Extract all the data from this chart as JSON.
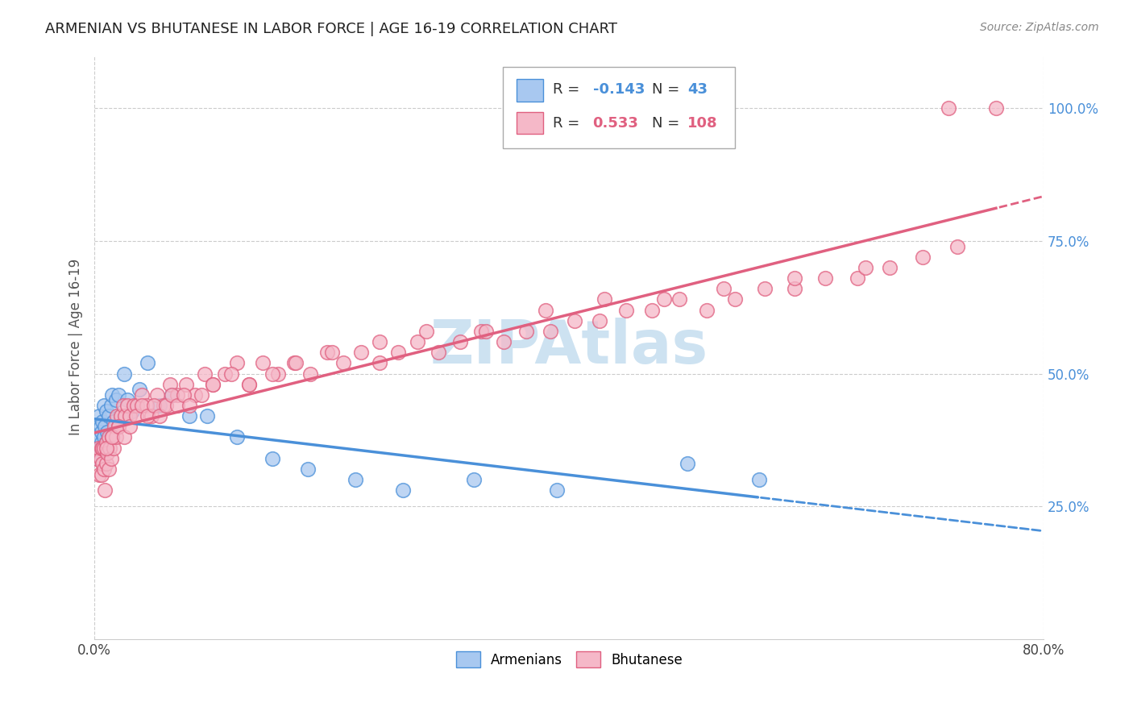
{
  "title": "ARMENIAN VS BHUTANESE IN LABOR FORCE | AGE 16-19 CORRELATION CHART",
  "source": "Source: ZipAtlas.com",
  "ylabel": "In Labor Force | Age 16-19",
  "xlim": [
    0.0,
    0.8
  ],
  "ylim": [
    0.0,
    1.1
  ],
  "armenian_R": -0.143,
  "armenian_N": 43,
  "bhutanese_R": 0.533,
  "bhutanese_N": 108,
  "armenian_color": "#a8c8f0",
  "bhutanese_color": "#f5b8c8",
  "armenian_line_color": "#4a90d9",
  "bhutanese_line_color": "#e06080",
  "watermark_color": "#c8dff0",
  "grid_color": "#cccccc",
  "arm_x": [
    0.002,
    0.003,
    0.004,
    0.004,
    0.005,
    0.005,
    0.006,
    0.006,
    0.007,
    0.007,
    0.008,
    0.008,
    0.009,
    0.009,
    0.01,
    0.01,
    0.011,
    0.012,
    0.013,
    0.014,
    0.015,
    0.016,
    0.018,
    0.02,
    0.022,
    0.025,
    0.028,
    0.032,
    0.038,
    0.045,
    0.055,
    0.065,
    0.08,
    0.095,
    0.12,
    0.15,
    0.18,
    0.22,
    0.26,
    0.32,
    0.39,
    0.5,
    0.56
  ],
  "arm_y": [
    0.36,
    0.34,
    0.42,
    0.38,
    0.35,
    0.4,
    0.37,
    0.39,
    0.36,
    0.41,
    0.38,
    0.44,
    0.36,
    0.4,
    0.37,
    0.43,
    0.39,
    0.42,
    0.38,
    0.44,
    0.46,
    0.41,
    0.45,
    0.46,
    0.42,
    0.5,
    0.45,
    0.43,
    0.47,
    0.52,
    0.44,
    0.46,
    0.42,
    0.42,
    0.38,
    0.34,
    0.32,
    0.3,
    0.28,
    0.3,
    0.28,
    0.33,
    0.3
  ],
  "bhu_x": [
    0.002,
    0.003,
    0.004,
    0.005,
    0.006,
    0.006,
    0.007,
    0.007,
    0.008,
    0.008,
    0.009,
    0.01,
    0.01,
    0.011,
    0.012,
    0.012,
    0.013,
    0.014,
    0.015,
    0.016,
    0.017,
    0.018,
    0.019,
    0.02,
    0.022,
    0.024,
    0.026,
    0.028,
    0.03,
    0.033,
    0.036,
    0.04,
    0.044,
    0.048,
    0.053,
    0.058,
    0.064,
    0.07,
    0.077,
    0.085,
    0.093,
    0.1,
    0.11,
    0.12,
    0.13,
    0.142,
    0.155,
    0.168,
    0.182,
    0.196,
    0.21,
    0.225,
    0.24,
    0.256,
    0.272,
    0.29,
    0.308,
    0.326,
    0.345,
    0.364,
    0.384,
    0.405,
    0.426,
    0.448,
    0.47,
    0.493,
    0.516,
    0.54,
    0.565,
    0.59,
    0.616,
    0.643,
    0.67,
    0.698,
    0.727,
    0.01,
    0.015,
    0.02,
    0.025,
    0.03,
    0.035,
    0.04,
    0.045,
    0.05,
    0.055,
    0.06,
    0.065,
    0.07,
    0.075,
    0.08,
    0.09,
    0.1,
    0.115,
    0.13,
    0.15,
    0.17,
    0.2,
    0.24,
    0.28,
    0.33,
    0.38,
    0.43,
    0.48,
    0.53,
    0.59,
    0.65,
    0.72,
    0.76
  ],
  "bhu_y": [
    0.34,
    0.36,
    0.31,
    0.34,
    0.36,
    0.31,
    0.33,
    0.36,
    0.32,
    0.36,
    0.28,
    0.33,
    0.37,
    0.35,
    0.32,
    0.38,
    0.36,
    0.34,
    0.38,
    0.36,
    0.4,
    0.38,
    0.42,
    0.4,
    0.42,
    0.44,
    0.42,
    0.44,
    0.42,
    0.44,
    0.44,
    0.46,
    0.44,
    0.42,
    0.46,
    0.44,
    0.48,
    0.46,
    0.48,
    0.46,
    0.5,
    0.48,
    0.5,
    0.52,
    0.48,
    0.52,
    0.5,
    0.52,
    0.5,
    0.54,
    0.52,
    0.54,
    0.52,
    0.54,
    0.56,
    0.54,
    0.56,
    0.58,
    0.56,
    0.58,
    0.58,
    0.6,
    0.6,
    0.62,
    0.62,
    0.64,
    0.62,
    0.64,
    0.66,
    0.66,
    0.68,
    0.68,
    0.7,
    0.72,
    0.74,
    0.36,
    0.38,
    0.4,
    0.38,
    0.4,
    0.42,
    0.44,
    0.42,
    0.44,
    0.42,
    0.44,
    0.46,
    0.44,
    0.46,
    0.44,
    0.46,
    0.48,
    0.5,
    0.48,
    0.5,
    0.52,
    0.54,
    0.56,
    0.58,
    0.58,
    0.62,
    0.64,
    0.64,
    0.66,
    0.68,
    0.7,
    1.0,
    1.0
  ]
}
